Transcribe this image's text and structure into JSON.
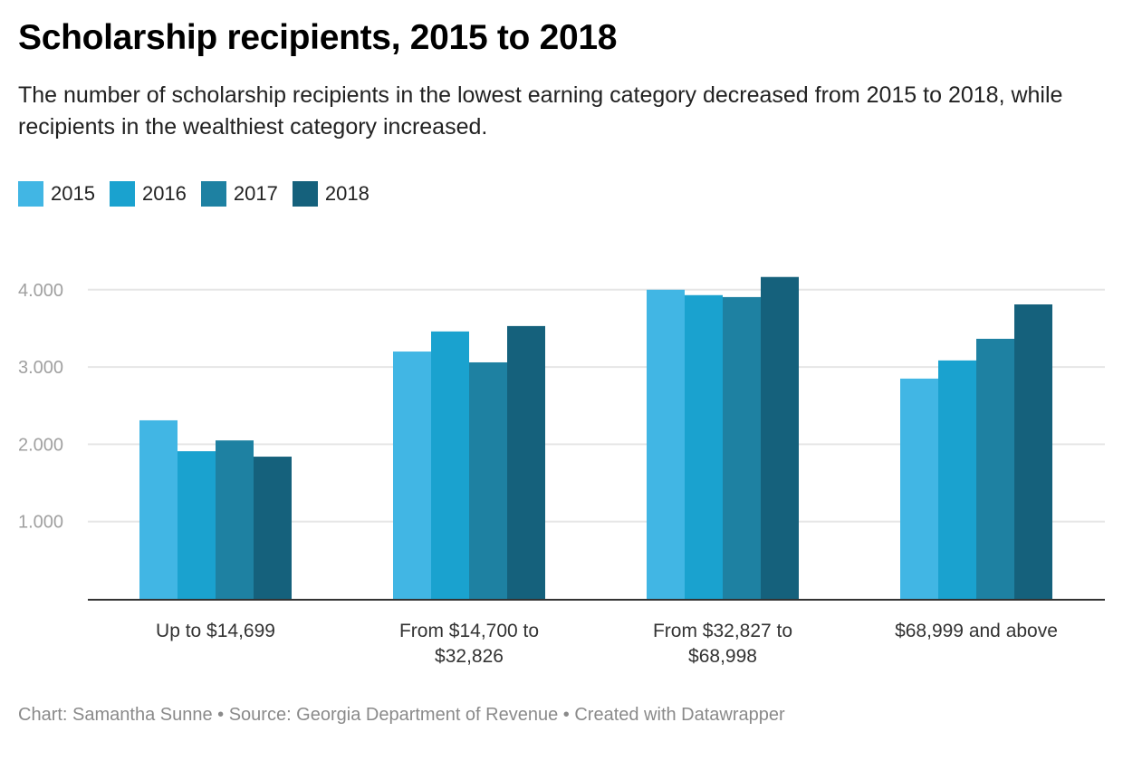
{
  "header": {
    "title": "Scholarship recipients, 2015 to 2018",
    "subtitle": "The number of scholarship recipients in the lowest earning category decreased from 2015 to 2018, while recipients in the wealthiest category increased."
  },
  "footer": {
    "text": "Chart: Samantha Sunne • Source: Georgia Department of Revenue • Created with Datawrapper"
  },
  "chart_data": {
    "type": "bar",
    "title": "Scholarship recipients, 2015 to 2018",
    "xlabel": "",
    "ylabel": "",
    "ylim": [
      0,
      4300
    ],
    "yticks": [
      1000,
      2000,
      3000,
      4000
    ],
    "ytick_labels": [
      "1.000",
      "2.000",
      "3.000",
      "4.000"
    ],
    "grid": true,
    "legend_position": "top-left",
    "categories": [
      [
        "Up to $14,699"
      ],
      [
        "From $14,700 to",
        "$32,826"
      ],
      [
        "From $32,827 to",
        "$68,998"
      ],
      [
        "$68,999 and above"
      ]
    ],
    "series": [
      {
        "name": "2015",
        "color": "#41b6e4",
        "values": [
          2310,
          3200,
          4000,
          2850
        ]
      },
      {
        "name": "2016",
        "color": "#1aa2cf",
        "values": [
          1910,
          3460,
          3930,
          3085
        ]
      },
      {
        "name": "2017",
        "color": "#1e81a2",
        "values": [
          2050,
          3060,
          3905,
          3365
        ]
      },
      {
        "name": "2018",
        "color": "#15617c",
        "values": [
          1840,
          3530,
          4165,
          3810
        ]
      }
    ]
  }
}
